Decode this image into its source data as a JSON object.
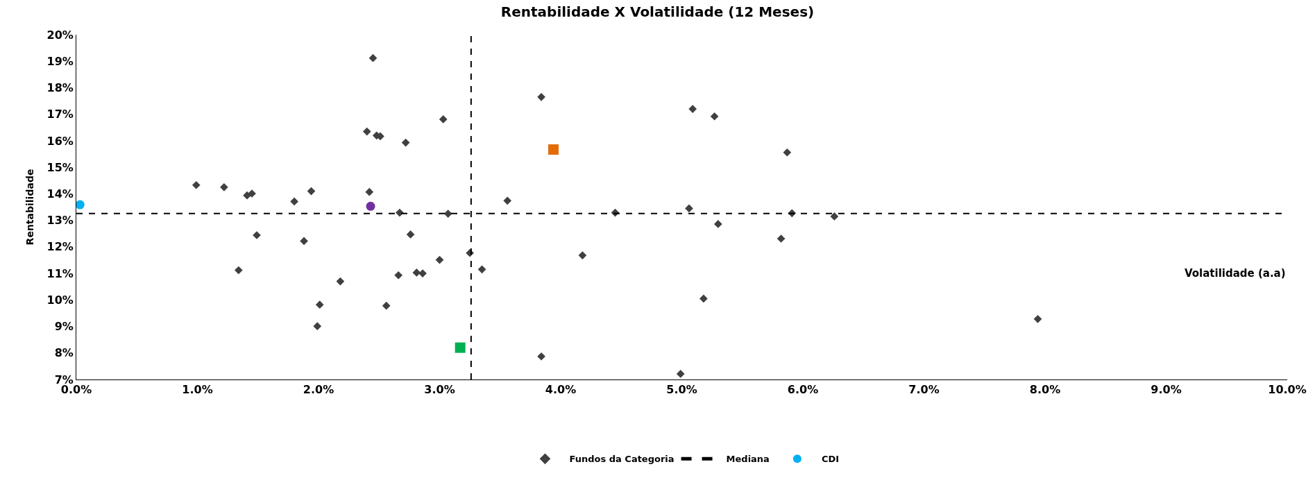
{
  "chart_data": {
    "type": "scatter",
    "title": "Rentabilidade X Volatilidade (12 Meses)",
    "xlabel": "Volatilidade (a.a)",
    "ylabel": "Rentabilidade",
    "xlim": [
      0,
      10
    ],
    "ylim": [
      7,
      20
    ],
    "xticks": [
      {
        "value": 0,
        "label": "0.0%"
      },
      {
        "value": 1,
        "label": "1.0%"
      },
      {
        "value": 2,
        "label": "2.0%"
      },
      {
        "value": 3,
        "label": "3.0%"
      },
      {
        "value": 4,
        "label": "4.0%"
      },
      {
        "value": 5,
        "label": "5.0%"
      },
      {
        "value": 6,
        "label": "6.0%"
      },
      {
        "value": 7,
        "label": "7.0%"
      },
      {
        "value": 8,
        "label": "8.0%"
      },
      {
        "value": 9,
        "label": "9.0%"
      },
      {
        "value": 10,
        "label": "10.0%"
      }
    ],
    "yticks": [
      {
        "value": 7,
        "label": "7%"
      },
      {
        "value": 8,
        "label": "8%"
      },
      {
        "value": 9,
        "label": "9%"
      },
      {
        "value": 10,
        "label": "10%"
      },
      {
        "value": 11,
        "label": "11%"
      },
      {
        "value": 12,
        "label": "12%"
      },
      {
        "value": 13,
        "label": "13%"
      },
      {
        "value": 14,
        "label": "14%"
      },
      {
        "value": 15,
        "label": "15%"
      },
      {
        "value": 16,
        "label": "16%"
      },
      {
        "value": 17,
        "label": "17%"
      },
      {
        "value": 18,
        "label": "18%"
      },
      {
        "value": 19,
        "label": "19%"
      },
      {
        "value": 20,
        "label": "20%"
      }
    ],
    "legend": "bottom",
    "series": [
      {
        "name": "Fundos da Categoria",
        "color": "#404040",
        "marker": "diamond",
        "x": [
          2.45,
          3.84,
          3.03,
          2.4,
          2.48,
          2.51,
          2.72,
          0.99,
          1.22,
          1.41,
          1.45,
          1.8,
          1.94,
          2.42,
          2.67,
          3.07,
          3.56,
          4.45,
          1.49,
          1.88,
          2.76,
          3.25,
          3.0,
          1.34,
          2.18,
          2.66,
          2.81,
          2.86,
          3.35,
          4.18,
          2.01,
          2.56,
          1.99,
          3.84,
          5.09,
          5.27,
          5.87,
          5.06,
          5.91,
          6.26,
          5.3,
          5.82,
          5.18,
          7.94,
          4.99
        ],
        "values": [
          19.12,
          17.65,
          16.81,
          16.35,
          16.2,
          16.17,
          15.93,
          14.33,
          14.25,
          13.94,
          14.01,
          13.71,
          14.1,
          14.07,
          13.29,
          13.25,
          13.74,
          13.29,
          12.44,
          12.22,
          12.47,
          11.77,
          11.51,
          11.12,
          10.7,
          10.93,
          11.03,
          11.0,
          11.15,
          11.68,
          9.82,
          9.78,
          9.01,
          7.87,
          17.2,
          16.92,
          15.56,
          13.45,
          13.27,
          13.15,
          12.86,
          12.31,
          10.05,
          9.28,
          7.21
        ]
      },
      {
        "color": "#7030a0",
        "marker": "circle",
        "x": [
          2.43
        ],
        "values": [
          13.53
        ]
      },
      {
        "name": "CDI",
        "color": "#00b0f0",
        "marker": "circle",
        "x": [
          0.03
        ],
        "values": [
          13.59
        ]
      },
      {
        "color": "#00b050",
        "marker": "square",
        "x": [
          3.17
        ],
        "values": [
          8.2
        ]
      },
      {
        "color": "#e36c09",
        "marker": "square",
        "x": [
          3.94
        ],
        "values": [
          15.67
        ]
      }
    ],
    "ref_lines": [
      {
        "axis": "x",
        "value": 3.26,
        "label": "Mediana",
        "color": "#000000",
        "line_style": "dashed"
      },
      {
        "axis": "y",
        "value": 13.26,
        "color": "#000000",
        "line_style": "dashed"
      }
    ]
  }
}
